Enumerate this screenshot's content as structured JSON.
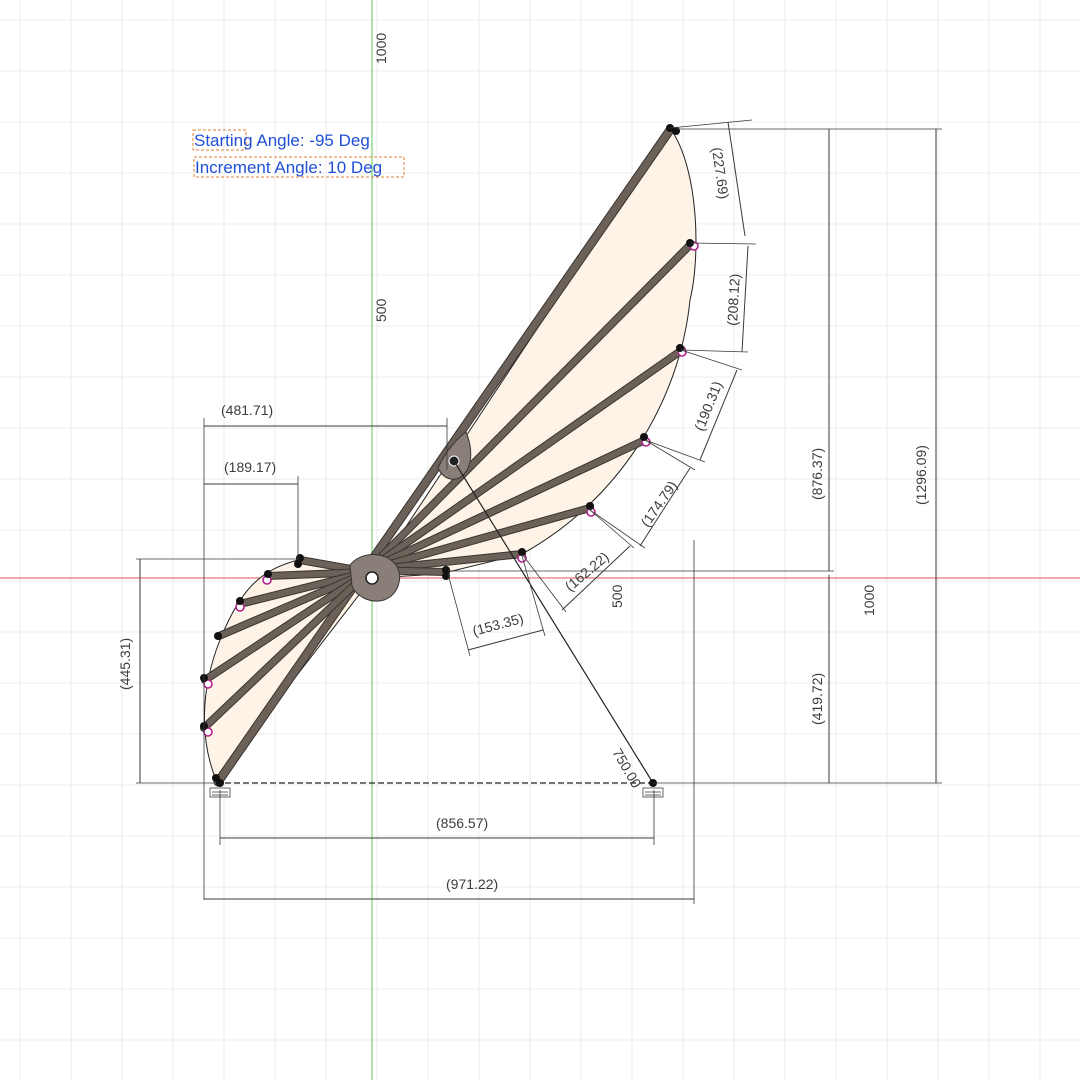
{
  "notes": {
    "starting_angle": "Starting Angle: -95 Deg",
    "increment_angle": "Increment Angle: 10 Deg"
  },
  "axis_labels": {
    "v_top": "1000",
    "v_mid": "500",
    "h_500": "500",
    "h_1000": "1000"
  },
  "dimensions": {
    "d481": "(481.71)",
    "d189": "(189.17)",
    "d445": "(445.31)",
    "d227": "(227.69)",
    "d208": "(208.12)",
    "d190": "(190.31)",
    "d174": "(174.79)",
    "d162": "(162.22)",
    "d153": "(153.35)",
    "d876": "(876.37)",
    "d1296": "(1296.09)",
    "d419": "(419.72)",
    "d750": "750.00",
    "d856": "(856.57)",
    "d971": "(971.22)"
  },
  "colors": {
    "grid": "#e6e6e6",
    "x_axis": "#e05050",
    "y_axis": "#7ccf7c",
    "fill": "#fdf3e6",
    "rib": "#6b6158",
    "rib_edge": "#3a3530",
    "constraint_point": "#b0208a",
    "note_text": "#1f4fd6",
    "note_box": "#e0803a"
  }
}
